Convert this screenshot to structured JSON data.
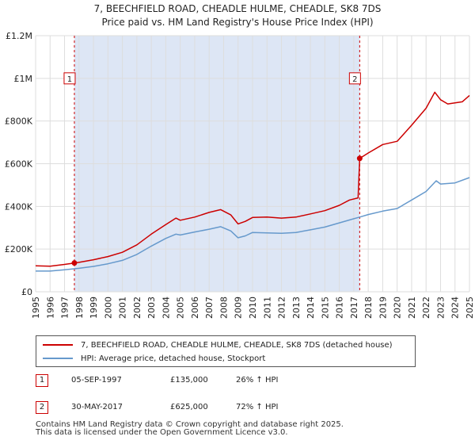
{
  "title_line1": "7, BEECHFIELD ROAD, CHEADLE HULME, CHEADLE, SK8 7DS",
  "title_line2": "Price paid vs. HM Land Registry's House Price Index (HPI)",
  "colors": {
    "property": "#cc0000",
    "hpi": "#6699cc",
    "shade": "#dde6f5",
    "grid": "#dddddd"
  },
  "chart_data": {
    "type": "line",
    "xlim": [
      1995,
      2025
    ],
    "ylim": [
      0,
      1200000
    ],
    "y_ticks": [
      {
        "value": 0,
        "label": "£0"
      },
      {
        "value": 200000,
        "label": "£200K"
      },
      {
        "value": 400000,
        "label": "£400K"
      },
      {
        "value": 600000,
        "label": "£600K"
      },
      {
        "value": 800000,
        "label": "£800K"
      },
      {
        "value": 1000000,
        "label": "£1M"
      },
      {
        "value": 1200000,
        "label": "£1.2M"
      }
    ],
    "x_ticks": [
      "1995",
      "1996",
      "1997",
      "1998",
      "1999",
      "2000",
      "2001",
      "2002",
      "2003",
      "2004",
      "2005",
      "2006",
      "2007",
      "2008",
      "2009",
      "2010",
      "2011",
      "2012",
      "2013",
      "2014",
      "2015",
      "2016",
      "2017",
      "2018",
      "2019",
      "2020",
      "2021",
      "2022",
      "2023",
      "2024",
      "2025"
    ],
    "shaded_range": [
      1997.68,
      2017.41
    ],
    "series": [
      {
        "name": "7, BEECHFIELD ROAD, CHEADLE HULME, CHEADLE, SK8 7DS (detached house)",
        "points": [
          [
            1995.0,
            122000
          ],
          [
            1996.0,
            120000
          ],
          [
            1997.0,
            128000
          ],
          [
            1997.68,
            135000
          ],
          [
            1998.0,
            138000
          ],
          [
            1999.0,
            150000
          ],
          [
            2000.0,
            165000
          ],
          [
            2001.0,
            185000
          ],
          [
            2002.0,
            220000
          ],
          [
            2003.0,
            270000
          ],
          [
            2004.0,
            315000
          ],
          [
            2004.7,
            345000
          ],
          [
            2005.0,
            335000
          ],
          [
            2006.0,
            350000
          ],
          [
            2007.0,
            372000
          ],
          [
            2007.8,
            385000
          ],
          [
            2008.5,
            360000
          ],
          [
            2009.0,
            318000
          ],
          [
            2009.5,
            330000
          ],
          [
            2010.0,
            348000
          ],
          [
            2011.0,
            350000
          ],
          [
            2012.0,
            345000
          ],
          [
            2013.0,
            350000
          ],
          [
            2014.0,
            365000
          ],
          [
            2015.0,
            380000
          ],
          [
            2016.0,
            405000
          ],
          [
            2016.7,
            430000
          ],
          [
            2017.3,
            440000
          ],
          [
            2017.41,
            625000
          ],
          [
            2018.0,
            650000
          ],
          [
            2019.0,
            690000
          ],
          [
            2020.0,
            705000
          ],
          [
            2021.0,
            780000
          ],
          [
            2022.0,
            860000
          ],
          [
            2022.6,
            935000
          ],
          [
            2023.0,
            900000
          ],
          [
            2023.5,
            880000
          ],
          [
            2024.0,
            885000
          ],
          [
            2024.5,
            890000
          ],
          [
            2025.0,
            920000
          ]
        ]
      },
      {
        "name": "HPI: Average price, detached house, Stockport",
        "points": [
          [
            1995.0,
            97000
          ],
          [
            1996.0,
            97000
          ],
          [
            1997.0,
            103000
          ],
          [
            1998.0,
            110000
          ],
          [
            1999.0,
            119000
          ],
          [
            2000.0,
            131000
          ],
          [
            2001.0,
            147000
          ],
          [
            2002.0,
            175000
          ],
          [
            2003.0,
            214000
          ],
          [
            2004.0,
            250000
          ],
          [
            2004.7,
            270000
          ],
          [
            2005.0,
            266000
          ],
          [
            2006.0,
            280000
          ],
          [
            2007.0,
            293000
          ],
          [
            2007.8,
            305000
          ],
          [
            2008.5,
            285000
          ],
          [
            2009.0,
            253000
          ],
          [
            2009.5,
            262000
          ],
          [
            2010.0,
            278000
          ],
          [
            2011.0,
            276000
          ],
          [
            2012.0,
            274000
          ],
          [
            2013.0,
            278000
          ],
          [
            2014.0,
            290000
          ],
          [
            2015.0,
            303000
          ],
          [
            2016.0,
            323000
          ],
          [
            2017.0,
            342000
          ],
          [
            2017.41,
            350000
          ],
          [
            2018.0,
            362000
          ],
          [
            2019.0,
            378000
          ],
          [
            2020.0,
            390000
          ],
          [
            2021.0,
            430000
          ],
          [
            2022.0,
            470000
          ],
          [
            2022.7,
            520000
          ],
          [
            2023.0,
            505000
          ],
          [
            2024.0,
            510000
          ],
          [
            2025.0,
            535000
          ]
        ]
      }
    ],
    "annotations": [
      {
        "label": "1",
        "x": 1997.68,
        "y": 135000
      },
      {
        "label": "2",
        "x": 2017.41,
        "y": 625000
      }
    ]
  },
  "legend": {
    "property_label": "7, BEECHFIELD ROAD, CHEADLE HULME, CHEADLE, SK8 7DS (detached house)",
    "hpi_label": "HPI: Average price, detached house, Stockport"
  },
  "sales": [
    {
      "num": "1",
      "date": "05-SEP-1997",
      "price": "£135,000",
      "hpi": "26% ↑ HPI"
    },
    {
      "num": "2",
      "date": "30-MAY-2017",
      "price": "£625,000",
      "hpi": "72% ↑ HPI"
    }
  ],
  "footer_line1": "Contains HM Land Registry data © Crown copyright and database right 2025.",
  "footer_line2": "This data is licensed under the Open Government Licence v3.0."
}
